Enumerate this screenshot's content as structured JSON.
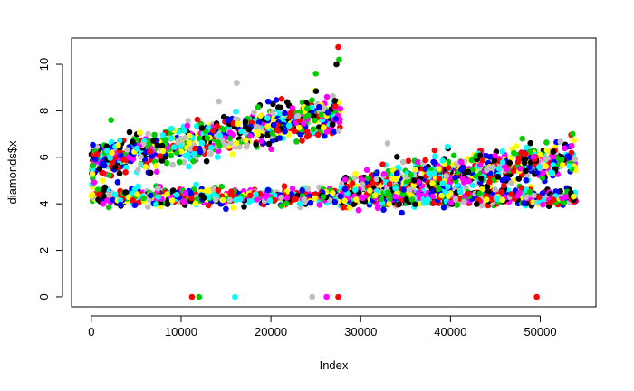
{
  "chart_data": {
    "type": "scatter",
    "xlabel": "Index",
    "ylabel": "diamonds$x",
    "xlim": [
      -2200,
      56200
    ],
    "ylim": [
      -0.43,
      11.13
    ],
    "x_ticks": [
      0,
      10000,
      20000,
      30000,
      40000,
      50000
    ],
    "y_ticks": [
      0,
      2,
      4,
      6,
      8,
      10
    ],
    "x_tick_labels": [
      "0",
      "10000",
      "20000",
      "30000",
      "40000",
      "50000"
    ],
    "y_tick_labels": [
      "0",
      "2",
      "4",
      "6",
      "8",
      "10"
    ],
    "grid": false,
    "legend": "none",
    "point_colors": [
      "#000000",
      "#ff0000",
      "#00cd00",
      "#0000ff",
      "#00ffff",
      "#ff00ff",
      "#ffff00",
      "#bebebe"
    ],
    "n_points": 53940,
    "segments": [
      {
        "x_range": [
          1,
          27750
        ],
        "upper_band_y": [
          5.8,
          8.0
        ],
        "lower_band_y": [
          4.3,
          4.3
        ]
      },
      {
        "x_range": [
          27750,
          54000
        ],
        "upper_band_y": [
          4.5,
          6.0
        ],
        "lower_band_y": [
          4.3,
          4.3
        ]
      }
    ],
    "zero_points": [
      {
        "x": 11200,
        "y": 0,
        "color": "#ff0000"
      },
      {
        "x": 12000,
        "y": 0,
        "color": "#00cd00"
      },
      {
        "x": 16000,
        "y": 0,
        "color": "#00ffff"
      },
      {
        "x": 24600,
        "y": 0,
        "color": "#bebebe"
      },
      {
        "x": 26200,
        "y": 0,
        "color": "#ff00ff"
      },
      {
        "x": 27500,
        "y": 0,
        "color": "#ff0000"
      },
      {
        "x": 49600,
        "y": 0,
        "color": "#ff0000"
      }
    ],
    "outlier_points": [
      {
        "x": 27500,
        "y": 10.74,
        "color": "#ff0000"
      },
      {
        "x": 27600,
        "y": 10.2,
        "color": "#00cd00"
      },
      {
        "x": 27300,
        "y": 10.0,
        "color": "#000000"
      },
      {
        "x": 16200,
        "y": 9.2,
        "color": "#bebebe"
      },
      {
        "x": 14200,
        "y": 8.4,
        "color": "#bebebe"
      },
      {
        "x": 25000,
        "y": 9.6,
        "color": "#00cd00"
      },
      {
        "x": 33000,
        "y": 6.6,
        "color": "#bebebe"
      },
      {
        "x": 48000,
        "y": 6.8,
        "color": "#00cd00"
      },
      {
        "x": 53600,
        "y": 7.0,
        "color": "#00cd00"
      },
      {
        "x": 2200,
        "y": 7.6,
        "color": "#00cd00"
      }
    ]
  }
}
